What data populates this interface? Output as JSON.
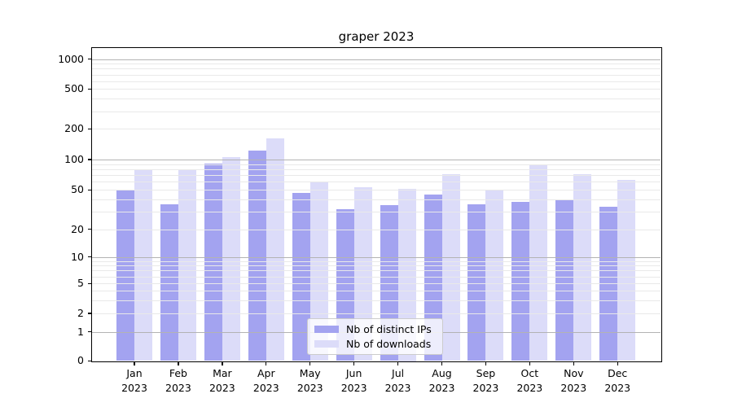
{
  "title": "graper 2023",
  "chart_data": {
    "type": "bar",
    "title": "graper 2023",
    "xlabel": "",
    "ylabel": "",
    "y_scale": "symlog",
    "ylim": [
      0,
      1300
    ],
    "grid": "horizontal; dark lines at 1,10,100,1000; faint log minor lines",
    "legend_position": "lower center",
    "y_ticks": [
      0,
      1,
      2,
      5,
      10,
      20,
      50,
      100,
      200,
      500,
      1000
    ],
    "x_labels": [
      [
        "Jan",
        "2023"
      ],
      [
        "Feb",
        "2023"
      ],
      [
        "Mar",
        "2023"
      ],
      [
        "Apr",
        "2023"
      ],
      [
        "May",
        "2023"
      ],
      [
        "Jun",
        "2023"
      ],
      [
        "Jul",
        "2023"
      ],
      [
        "Aug",
        "2023"
      ],
      [
        "Sep",
        "2023"
      ],
      [
        "Oct",
        "2023"
      ],
      [
        "Nov",
        "2023"
      ],
      [
        "Dec",
        "2023"
      ]
    ],
    "series": [
      {
        "name": "Nb of distinct IPs",
        "color": "#a3a3f0",
        "values": [
          50,
          36,
          91,
          123,
          47,
          32,
          35,
          45,
          36,
          38,
          39,
          34
        ]
      },
      {
        "name": "Nb of downloads",
        "color": "#dcdcf9",
        "values": [
          80,
          80,
          105,
          161,
          60,
          53,
          51,
          71,
          50,
          89,
          71,
          63
        ]
      }
    ],
    "grid_major_color": "#b3b3b3",
    "grid_minor_color": "#e9e9e9",
    "spine_color": "#000000",
    "background_color": "#ffffff"
  }
}
